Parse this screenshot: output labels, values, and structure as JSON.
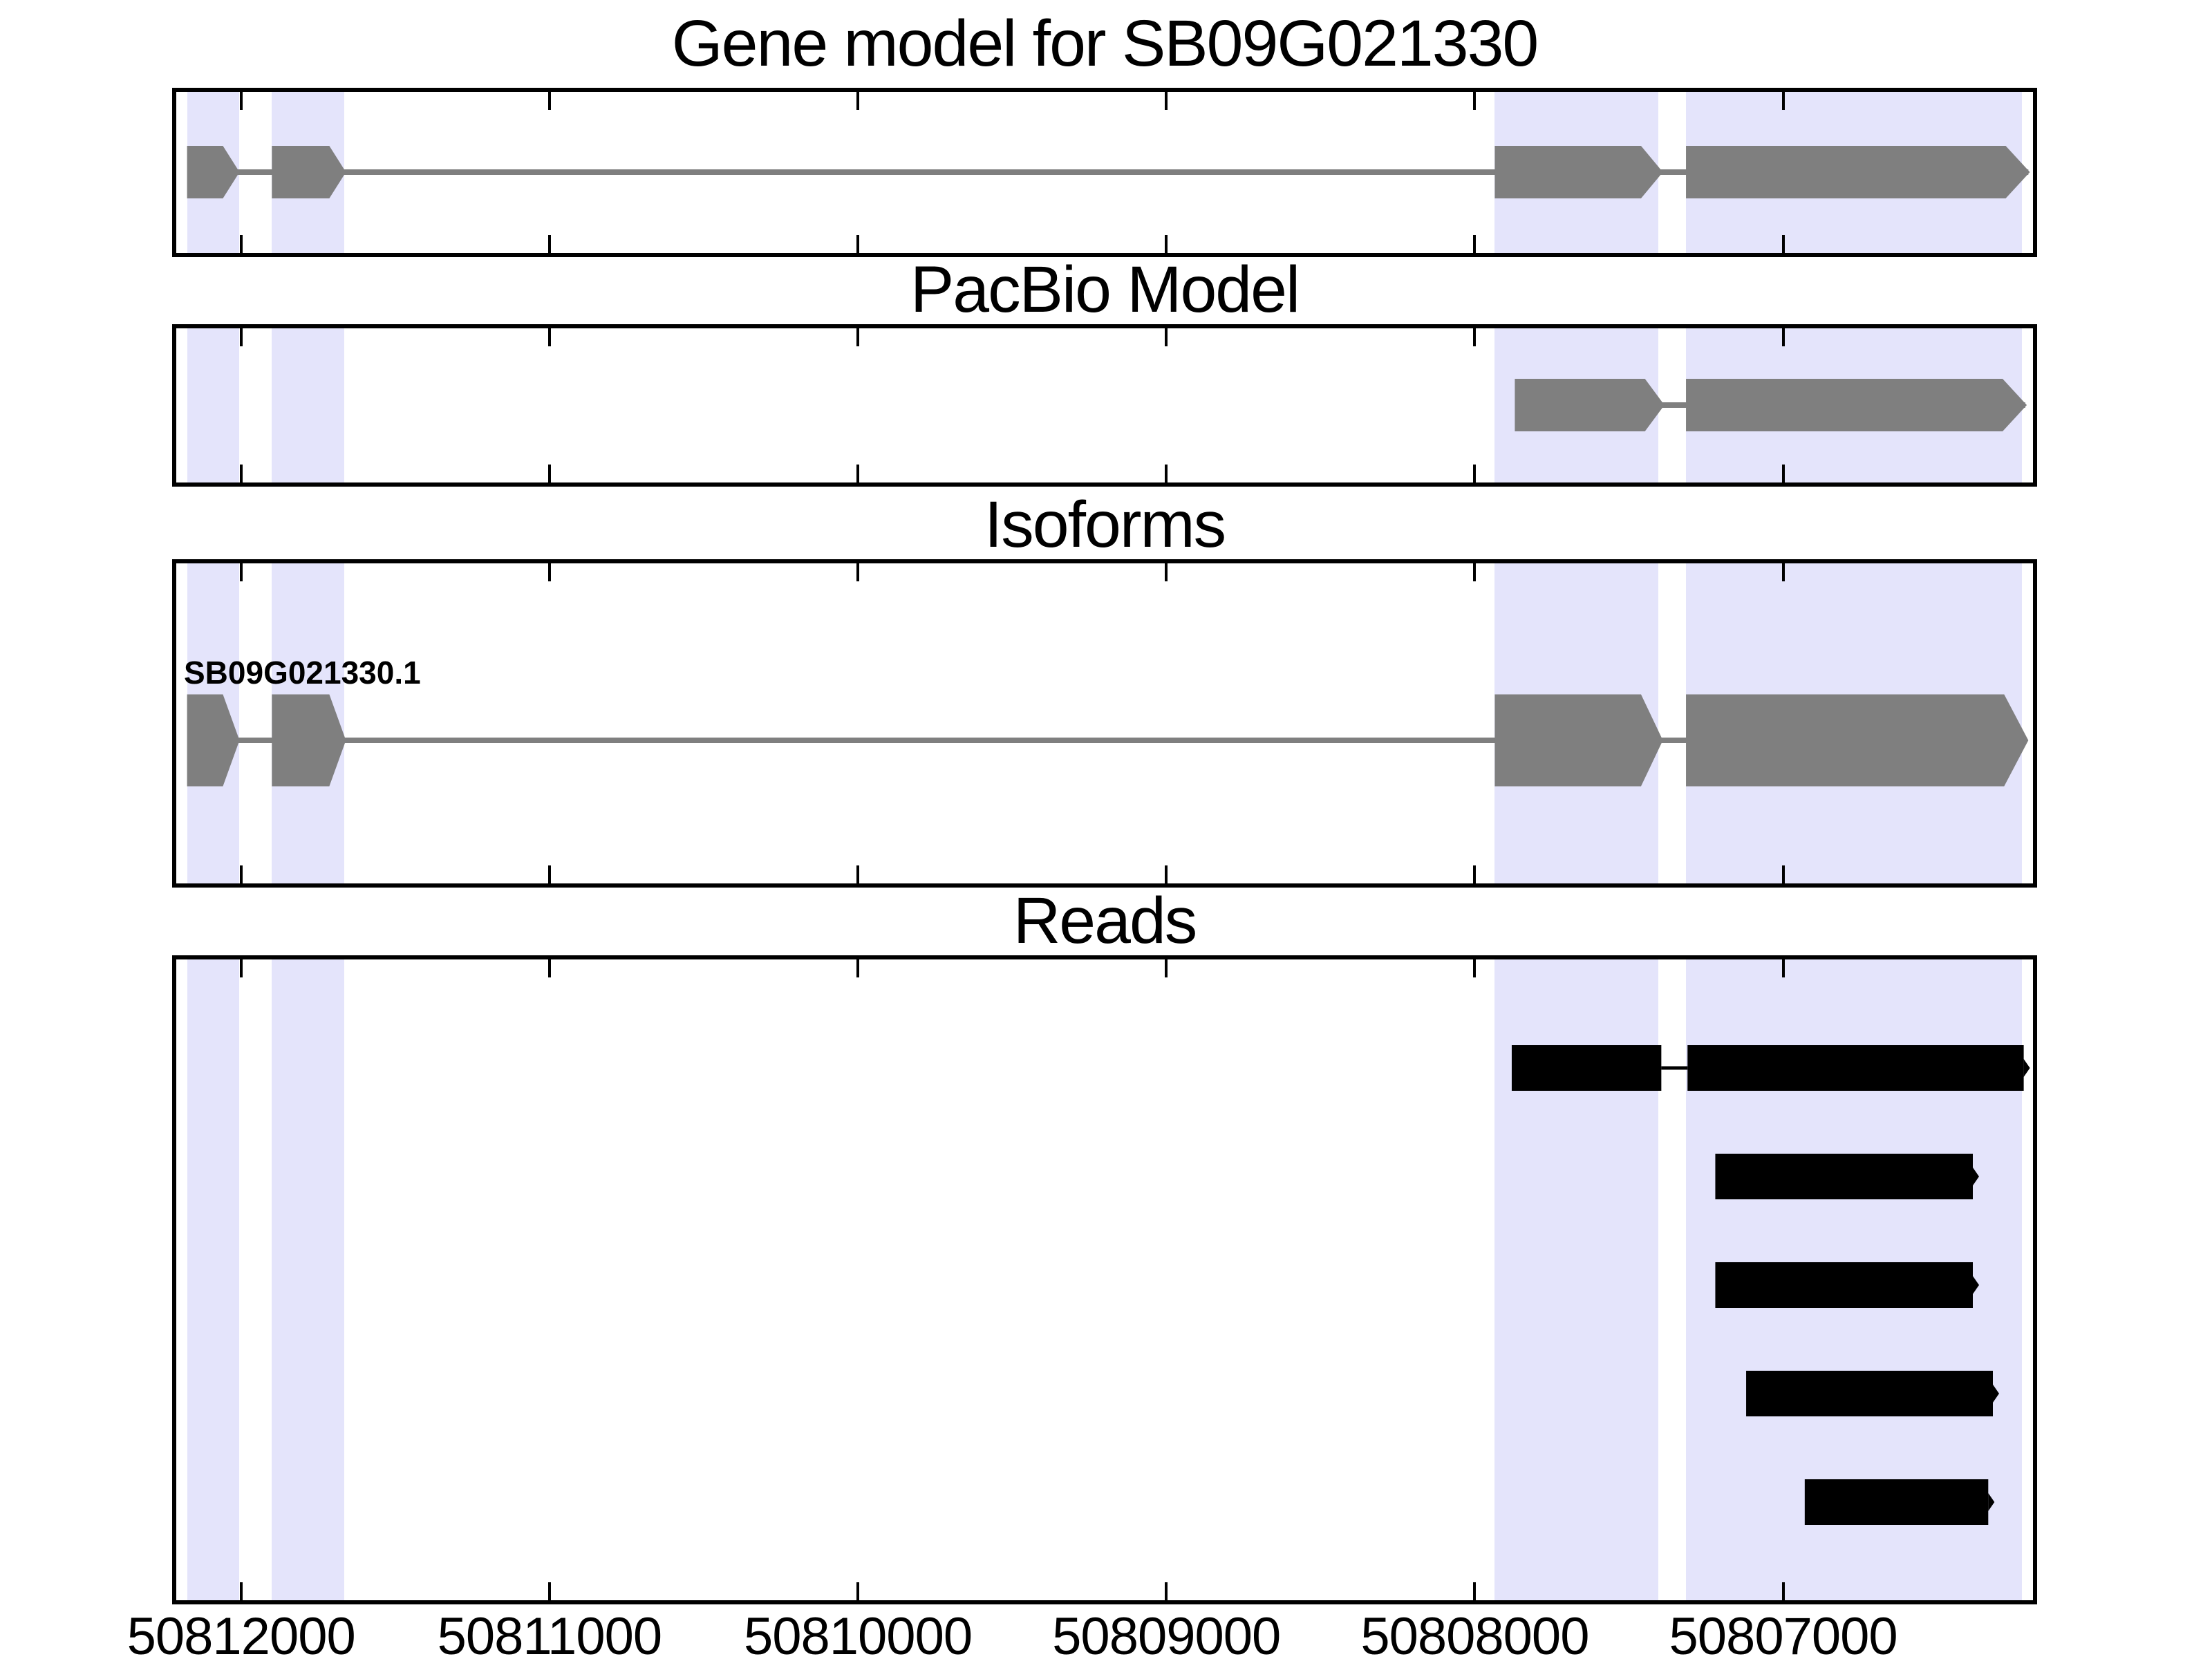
{
  "figure_title": "Gene model for SB09G021330",
  "chart_data": {
    "type": "genomic-feature-tracks",
    "title": "Gene model for SB09G021330",
    "x_axis": {
      "domain": [
        50812210,
        50806190
      ],
      "direction": "decreasing-left-to-right",
      "ticks": [
        50812000,
        50811000,
        50810000,
        50809000,
        50808000,
        50807000
      ],
      "tick_labels": [
        "50812000",
        "50811000",
        "50810000",
        "50809000",
        "50808000",
        "50807000"
      ],
      "unit": "chromosome position (bp)"
    },
    "highlight_regions": [
      {
        "start": 50812175,
        "end": 50812005
      },
      {
        "start": 50811900,
        "end": 50811665
      },
      {
        "start": 50807935,
        "end": 50807405
      },
      {
        "start": 50807315,
        "end": 50806225
      }
    ],
    "colors": {
      "exon_fill": "#7f7f7f",
      "read_fill": "#000000",
      "highlight_fill": "#e4e4fb",
      "connector": "#7f7f7f",
      "read_connector": "#000000",
      "axis": "#000000",
      "background": "#ffffff"
    },
    "panels": [
      {
        "id": "gene-model",
        "title": "Gene model for SB09G021330",
        "track_type": "gene_model",
        "strand": "forward-arrows",
        "exons": [
          {
            "start": 50812175,
            "end": 50812005
          },
          {
            "start": 50811900,
            "end": 50811660
          },
          {
            "start": 50807935,
            "end": 50807390
          },
          {
            "start": 50807315,
            "end": 50806200
          }
        ],
        "connector": {
          "start": 50812170,
          "end": 50806205
        }
      },
      {
        "id": "pacbio-model",
        "title": "PacBio Model",
        "track_type": "gene_model",
        "strand": "forward-arrows",
        "exons": [
          {
            "start": 50807870,
            "end": 50807385
          },
          {
            "start": 50807315,
            "end": 50806210
          }
        ],
        "connector": {
          "start": 50807865,
          "end": 50806215
        }
      },
      {
        "id": "isoforms",
        "title": "Isoforms",
        "track_type": "isoform",
        "isoform_label": "SB09G021330.1",
        "exons": [
          {
            "start": 50812175,
            "end": 50812005
          },
          {
            "start": 50811900,
            "end": 50811660
          },
          {
            "start": 50807935,
            "end": 50807390
          },
          {
            "start": 50807315,
            "end": 50806205
          }
        ],
        "connector": {
          "start": 50812170,
          "end": 50806210
        }
      },
      {
        "id": "reads",
        "title": "Reads",
        "track_type": "reads",
        "reads": [
          {
            "segments": [
              {
                "start": 50807880,
                "end": 50807395
              },
              {
                "start": 50807310,
                "end": 50806220
              }
            ]
          },
          {
            "segments": [
              {
                "start": 50807220,
                "end": 50806385
              }
            ]
          },
          {
            "segments": [
              {
                "start": 50807220,
                "end": 50806385
              }
            ]
          },
          {
            "segments": [
              {
                "start": 50807120,
                "end": 50806320
              }
            ]
          },
          {
            "segments": [
              {
                "start": 50806930,
                "end": 50806335
              }
            ]
          }
        ]
      }
    ]
  }
}
